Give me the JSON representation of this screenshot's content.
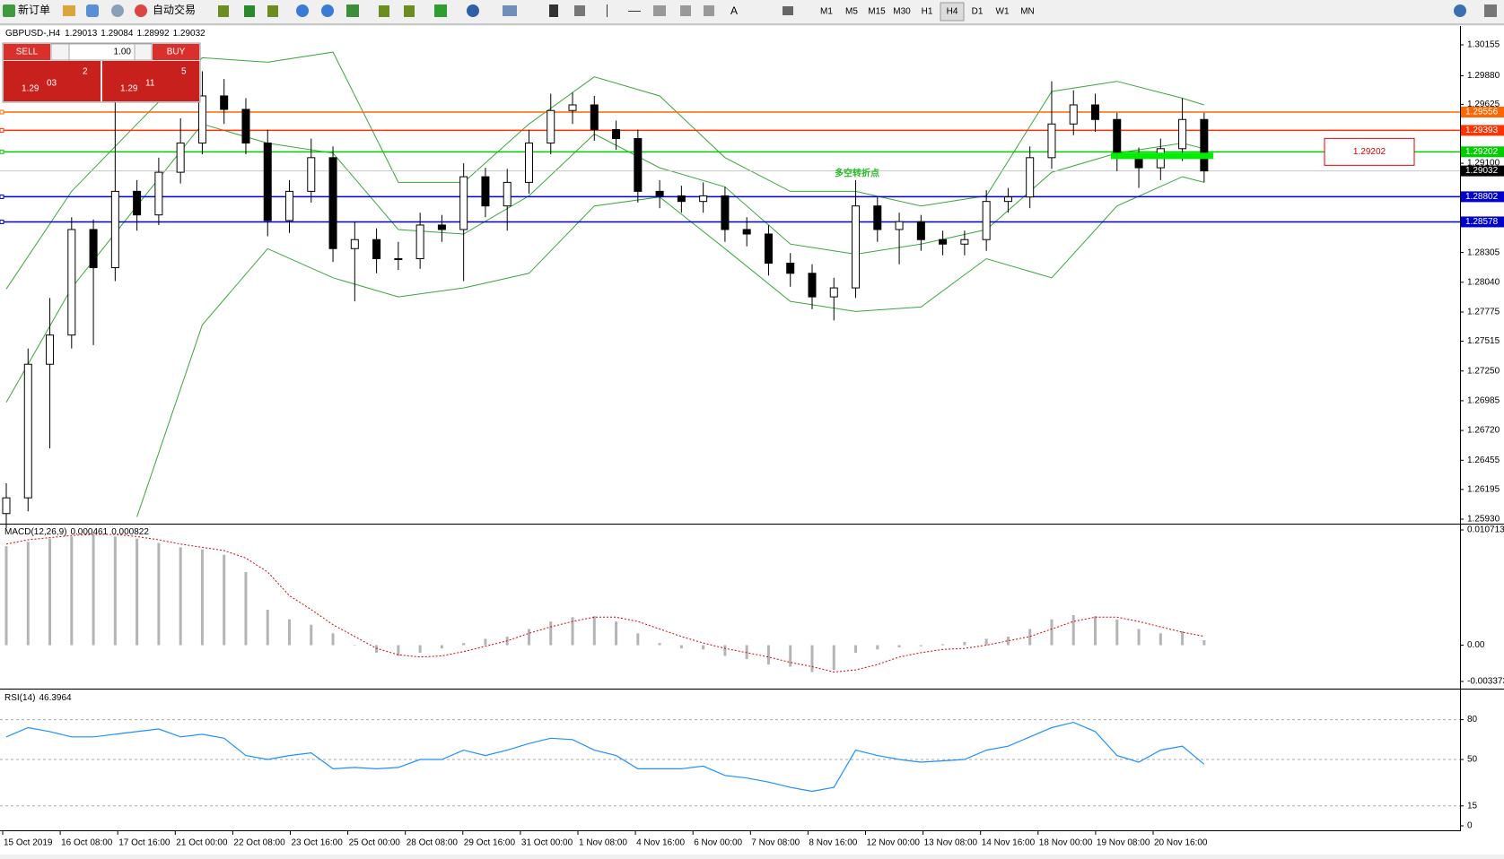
{
  "toolbar": {
    "new_order": "新订单",
    "auto_trading": "自动交易",
    "text_tool": "A",
    "timeframes": [
      "M1",
      "M5",
      "M15",
      "M30",
      "H1",
      "H4",
      "D1",
      "W1",
      "MN"
    ],
    "active_timeframe": 5
  },
  "trade_panel": {
    "sell": "SELL",
    "buy": "BUY",
    "volume": "1.00",
    "bid": {
      "prefix": "1.29",
      "main": "03",
      "suffix": "2"
    },
    "ask": {
      "prefix": "1.29",
      "main": "11",
      "suffix": "5"
    }
  },
  "time_axis": {
    "labels": [
      "15 Oct 2019",
      "16 Oct 08:00",
      "17 Oct 16:00",
      "21 Oct 00:00",
      "22 Oct 08:00",
      "23 Oct 16:00",
      "25 Oct 00:00",
      "28 Oct 08:00",
      "29 Oct 16:00",
      "31 Oct 00:00",
      "1 Nov 08:00",
      "4 Nov 16:00",
      "6 Nov 00:00",
      "7 Nov 08:00",
      "8 Nov 16:00",
      "12 Nov 00:00",
      "13 Nov 08:00",
      "14 Nov 16:00",
      "18 Nov 00:00",
      "19 Nov 08:00",
      "20 Nov 16:00"
    ]
  },
  "chart_data": [
    {
      "type": "candlestick",
      "symbol": "GBPUSD-,H4",
      "ohlc_info": [
        1.29013,
        1.29084,
        1.28992,
        1.29032
      ],
      "up_color": "#ffffff",
      "down_color": "#000000",
      "open": [
        1.2598,
        1.2612,
        1.2731,
        1.2757,
        1.2851,
        1.2817,
        1.2885,
        1.2864,
        1.2902,
        1.2928,
        1.297,
        1.2958,
        1.2928,
        1.2859,
        1.2885,
        1.2915,
        1.2834,
        1.2842,
        1.2825,
        1.2825,
        1.2855,
        1.2851,
        1.2898,
        1.2872,
        1.2893,
        1.2928,
        1.2957,
        1.2962,
        1.294,
        1.2932,
        1.2885,
        1.2881,
        1.2876,
        1.2881,
        1.2851,
        1.2847,
        1.2821,
        1.2812,
        1.2791,
        1.2799,
        1.2872,
        1.2851,
        1.2858,
        1.2842,
        1.2838,
        1.2842,
        1.2876,
        1.288,
        1.2915,
        1.2945,
        1.2962,
        1.2949,
        1.2915,
        1.2906,
        1.2923,
        1.2949
      ],
      "high": [
        1.2625,
        1.2745,
        1.279,
        1.2862,
        1.286,
        1.2968,
        1.2895,
        1.2915,
        1.295,
        1.2992,
        1.2985,
        1.2968,
        1.294,
        1.2895,
        1.2932,
        1.2925,
        1.2858,
        1.2852,
        1.284,
        1.2866,
        1.2864,
        1.291,
        1.2906,
        1.2905,
        1.294,
        1.2972,
        1.2973,
        1.297,
        1.2948,
        1.294,
        1.2895,
        1.289,
        1.2893,
        1.2889,
        1.2862,
        1.2855,
        1.283,
        1.282,
        1.2808,
        1.2895,
        1.288,
        1.2866,
        1.2864,
        1.285,
        1.285,
        1.2886,
        1.2888,
        1.2925,
        1.2983,
        1.2975,
        1.2972,
        1.2955,
        1.2924,
        1.2932,
        1.2968,
        1.2955
      ],
      "low": [
        1.2585,
        1.26,
        1.2656,
        1.2745,
        1.2748,
        1.2805,
        1.285,
        1.2855,
        1.2892,
        1.2918,
        1.2945,
        1.2918,
        1.2845,
        1.2848,
        1.2875,
        1.2822,
        1.2787,
        1.2812,
        1.2815,
        1.2816,
        1.284,
        1.2805,
        1.2862,
        1.285,
        1.2883,
        1.2918,
        1.2945,
        1.293,
        1.2922,
        1.2875,
        1.287,
        1.2866,
        1.2866,
        1.284,
        1.2836,
        1.281,
        1.28,
        1.278,
        1.277,
        1.279,
        1.284,
        1.282,
        1.2832,
        1.2828,
        1.2828,
        1.2832,
        1.2866,
        1.287,
        1.2905,
        1.2935,
        1.2938,
        1.2903,
        1.2888,
        1.2895,
        1.2912,
        1.2893
      ],
      "close": [
        1.2612,
        1.2731,
        1.2757,
        1.2851,
        1.2817,
        1.2885,
        1.2864,
        1.2902,
        1.2928,
        1.297,
        1.2958,
        1.2928,
        1.2859,
        1.2885,
        1.2915,
        1.2834,
        1.2842,
        1.2825,
        1.2825,
        1.2855,
        1.2851,
        1.2898,
        1.2872,
        1.2893,
        1.2928,
        1.2957,
        1.2962,
        1.294,
        1.2932,
        1.2885,
        1.2881,
        1.2876,
        1.2881,
        1.2851,
        1.2847,
        1.2821,
        1.2812,
        1.2791,
        1.2799,
        1.2872,
        1.2851,
        1.2858,
        1.2842,
        1.2838,
        1.2842,
        1.2876,
        1.288,
        1.2915,
        1.2945,
        1.2962,
        1.2949,
        1.2915,
        1.2906,
        1.2923,
        1.2949,
        1.29032
      ],
      "bands": {
        "color": "#3aa63a",
        "x": [
          0,
          3,
          6,
          9,
          12,
          15,
          18,
          21,
          24,
          27,
          30,
          33,
          36,
          39,
          42,
          45,
          48,
          51,
          54,
          55
        ],
        "upper": [
          1.2798,
          1.2885,
          1.2945,
          1.3004,
          1.3,
          1.3009,
          1.2893,
          1.2893,
          1.2945,
          1.2987,
          1.297,
          1.2915,
          1.2885,
          1.2885,
          1.2872,
          1.2881,
          1.2974,
          1.2983,
          1.2968,
          1.2962
        ],
        "middle": [
          1.2697,
          1.2799,
          1.2872,
          1.2945,
          1.2928,
          1.2919,
          1.2851,
          1.2847,
          1.2881,
          1.2936,
          1.2906,
          1.2889,
          1.2838,
          1.2829,
          1.2838,
          1.2851,
          1.2902,
          1.2919,
          1.2928,
          1.2923
        ],
        "lower": [
          null,
          null,
          1.2595,
          1.2766,
          1.2834,
          1.2808,
          1.2791,
          1.2799,
          1.2812,
          1.2872,
          1.288,
          1.2834,
          1.2787,
          1.2778,
          1.2782,
          1.2825,
          1.2808,
          1.2872,
          1.2898,
          1.2893
        ]
      },
      "hlines": [
        {
          "value": 1.29556,
          "color": "#ff6600"
        },
        {
          "value": 1.29393,
          "color": "#ff3300"
        },
        {
          "value": 1.29202,
          "color": "#00cc00"
        },
        {
          "value": 1.28802,
          "color": "#0000cc"
        },
        {
          "value": 1.28578,
          "color": "#0000cc"
        }
      ],
      "current_price": 1.29032,
      "annotation": "多空转折点",
      "annotation_color": "#22b822",
      "ylim": [
        1.2593,
        1.30155
      ],
      "yticks": [
        1.30155,
        {
          "value": 1.2988,
          "label": "1.29880"
        },
        1.29625,
        {
          "value": 1.291,
          "label": "1.29100"
        },
        1.28305,
        {
          "value": 1.2804,
          "label": "1.28040"
        },
        1.27775,
        1.27515,
        {
          "value": 1.2725,
          "label": "1.27250"
        },
        1.26985,
        {
          "value": 1.2672,
          "label": "1.26720"
        },
        1.26455,
        1.26195,
        {
          "value": 1.2593,
          "label": "1.25930"
        }
      ]
    },
    {
      "type": "macd",
      "name": "MACD(12,26,9)",
      "current": [
        0.000461,
        0.000822
      ],
      "hist_color": "#b4b4b4",
      "signal_color": "#e00000",
      "histogram": [
        0.0092,
        0.0096,
        0.0099,
        0.0101,
        0.0103,
        0.0101,
        0.0099,
        0.0095,
        0.0091,
        0.0089,
        0.0084,
        0.0068,
        0.0033,
        0.0024,
        0.0019,
        0.0011,
        0,
        -0.0007,
        -0.001,
        -0.0007,
        -0.0003,
        0.0002,
        0.0006,
        0.0008,
        0.0015,
        0.0022,
        0.0026,
        0.0027,
        0.0022,
        0.0011,
        0.0002,
        -0.0003,
        -0.0004,
        -0.001,
        -0.0013,
        -0.0018,
        -0.002,
        -0.0025,
        -0.0023,
        -0.0007,
        -0.0004,
        -0.0002,
        -0.0001,
        0.0001,
        0.0003,
        0.0006,
        0.0008,
        0.0015,
        0.0024,
        0.0028,
        0.0027,
        0.0024,
        0.0015,
        0.0011,
        0.0013,
        0.000461
      ],
      "signal": [
        0.0094,
        0.0098,
        0.01,
        0.0102,
        0.0103,
        0.0103,
        0.0101,
        0.0098,
        0.0094,
        0.0091,
        0.0088,
        0.0081,
        0.0068,
        0.0046,
        0.0033,
        0.0019,
        0.0008,
        -0.0003,
        -0.0009,
        -0.0011,
        -0.001,
        -0.0006,
        -0.0001,
        0.0004,
        0.0011,
        0.0017,
        0.0022,
        0.0026,
        0.0026,
        0.0022,
        0.0015,
        0.0008,
        0.0002,
        -0.0003,
        -0.0007,
        -0.0011,
        -0.0016,
        -0.002,
        -0.0025,
        -0.0023,
        -0.0018,
        -0.0011,
        -0.0007,
        -0.0004,
        -0.0003,
        0,
        0.0004,
        0.0008,
        0.0015,
        0.0022,
        0.0026,
        0.0026,
        0.0022,
        0.0017,
        0.0012,
        0.000822
      ],
      "ylim": [
        -0.003373,
        0.010713
      ],
      "yticks": [
        0.010713,
        {
          "value": 0,
          "label": "0.00"
        },
        -0.003373
      ]
    },
    {
      "type": "line",
      "name": "RSI(14)",
      "current": 46.3964,
      "color": "#1e90ff",
      "grid": true,
      "values": [
        67,
        74,
        71,
        67,
        67,
        69,
        71,
        73,
        67,
        69,
        66,
        53,
        50,
        53,
        55,
        43,
        44,
        43,
        44,
        50,
        50,
        57,
        53,
        57,
        62,
        66,
        65,
        57,
        53,
        43,
        43,
        43,
        45,
        38,
        36,
        33,
        29,
        26,
        29,
        57,
        53,
        50,
        48,
        49,
        50,
        57,
        60,
        67,
        74,
        78,
        71,
        53,
        48,
        57,
        60,
        46.3964
      ],
      "ylim": [
        0,
        100
      ],
      "yticks": [
        80,
        50,
        15,
        0
      ]
    }
  ]
}
